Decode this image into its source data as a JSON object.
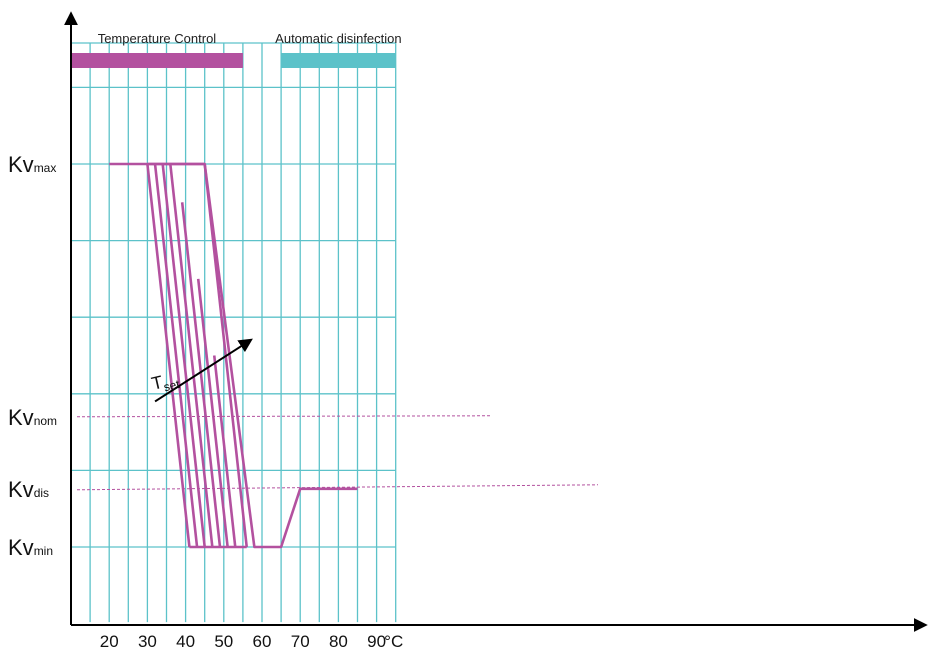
{
  "chart_data": {
    "type": "line",
    "xlabel": "°C",
    "x_ticks": [
      20,
      30,
      40,
      50,
      60,
      70,
      80,
      90
    ],
    "xlim": [
      10,
      95
    ],
    "bands": [
      {
        "label": "Temperature Control",
        "from": 10,
        "to": 55,
        "color": "#b3519f"
      },
      {
        "label": "Automatic disinfection",
        "from": 65,
        "to": 95,
        "color": "#5cc2c9"
      }
    ],
    "y_levels": [
      {
        "key": "max",
        "main": "Kv",
        "sub": "max",
        "value": 5
      },
      {
        "key": "nom",
        "main": "Kv",
        "sub": "nom",
        "value": 1.7
      },
      {
        "key": "dis",
        "main": "Kv",
        "sub": "dis",
        "value": 0.76
      },
      {
        "key": "min",
        "main": "Kv",
        "sub": "min",
        "value": 0
      }
    ],
    "ylim": [
      -1,
      6.8
    ],
    "main_curve": {
      "x": [
        20,
        45,
        58,
        60,
        65,
        70,
        85
      ],
      "y": [
        5,
        5,
        0,
        0,
        0,
        0.76,
        0.76
      ]
    },
    "setpoint_family": {
      "top_x": [
        30,
        32,
        34,
        36,
        38,
        40,
        42,
        45
      ],
      "bottom_x": [
        41,
        43,
        45,
        47,
        49,
        51,
        53,
        56
      ],
      "start_y": [
        5,
        5,
        5,
        5,
        4.5,
        3.5,
        2.5,
        5
      ]
    },
    "annotation": {
      "text": "T",
      "sub": "set",
      "x1": 32,
      "y1": 1.9,
      "x2": 57,
      "y2": 2.7
    },
    "grid": true
  }
}
